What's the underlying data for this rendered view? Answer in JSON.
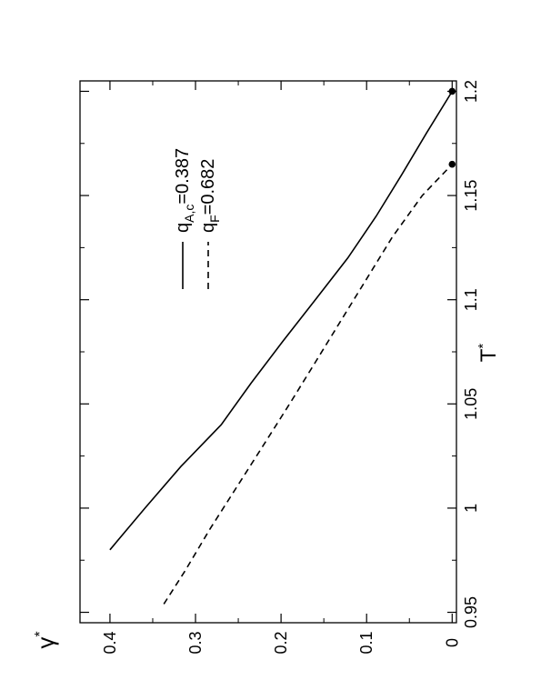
{
  "chart_data": {
    "type": "line",
    "xlabel": "T",
    "xlabel_sup": "*",
    "ylabel": "γ",
    "ylabel_sup": "*",
    "xlim": [
      0.945,
      1.205
    ],
    "ylim": [
      -0.005,
      0.435
    ],
    "xticks": [
      0.95,
      1,
      1.05,
      1.1,
      1.15,
      1.2
    ],
    "xtick_labels": [
      "0.95",
      "1",
      "1.05",
      "1.1",
      "1.15",
      "1.2"
    ],
    "yticks": [
      0,
      0.1,
      0.2,
      0.3,
      0.4
    ],
    "ytick_labels": [
      "0",
      "0.1",
      "0.2",
      "0.3",
      "0.4"
    ],
    "grid": false,
    "orientation": "rotated 90° counter-clockwise",
    "legend_position": "upper-right",
    "series": [
      {
        "legend_main": "q",
        "legend_sub": "A,c",
        "legend_value": "=0.387",
        "style": "solid",
        "color": "#000000",
        "x": [
          0.98,
          1.0,
          1.02,
          1.04,
          1.06,
          1.08,
          1.1,
          1.12,
          1.14,
          1.16,
          1.18,
          1.2
        ],
        "y": [
          0.4,
          0.359,
          0.317,
          0.27,
          0.235,
          0.198,
          0.16,
          0.122,
          0.089,
          0.059,
          0.03,
          0.0
        ]
      },
      {
        "legend_main": "q",
        "legend_sub": "F",
        "legend_value": "=0.682",
        "style": "dashed",
        "color": "#000000",
        "x": [
          0.954,
          0.97,
          0.99,
          1.01,
          1.03,
          1.05,
          1.07,
          1.09,
          1.11,
          1.13,
          1.15,
          1.165
        ],
        "y": [
          0.337,
          0.312,
          0.283,
          0.252,
          0.221,
          0.19,
          0.16,
          0.13,
          0.1,
          0.07,
          0.035,
          0.0
        ]
      }
    ],
    "markers": [
      {
        "x": 1.2,
        "y": 0.0
      },
      {
        "x": 1.165,
        "y": 0.0
      }
    ]
  }
}
